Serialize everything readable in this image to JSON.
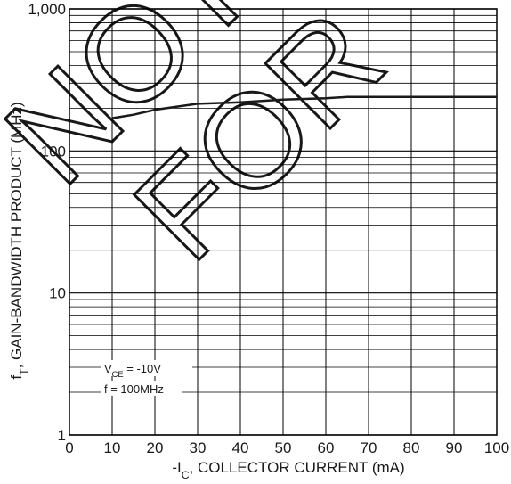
{
  "chart_data": {
    "type": "line",
    "xlabel": {
      "prefix": "-I",
      "sub": "C",
      "suffix": ", COLLECTOR CURRENT (mA)"
    },
    "ylabel": {
      "prefix": "f",
      "sub": "T",
      "suffix": ", GAIN-BANDWIDTH PRODUCT (MHz)"
    },
    "xlim": [
      0,
      100
    ],
    "ylim": [
      1,
      1000
    ],
    "yscale": "log",
    "grid": true,
    "x_ticks": [
      0,
      10,
      20,
      30,
      40,
      50,
      60,
      70,
      80,
      90,
      100
    ],
    "x_tick_labels": [
      "0",
      "10",
      "20",
      "30",
      "40",
      "50",
      "60",
      "70",
      "80",
      "90",
      "100"
    ],
    "y_ticks": [
      1,
      10,
      100,
      1000
    ],
    "y_tick_labels": [
      "1",
      "10",
      "100",
      "1,000"
    ],
    "annotations": [
      {
        "prefix": "V",
        "sub": "CE",
        "suffix": " = -10V"
      },
      {
        "text": "f = 100MHz"
      }
    ],
    "series": [
      {
        "x": [
          10,
          15,
          20,
          25,
          30,
          40,
          50,
          60,
          65,
          70,
          80,
          90,
          100
        ],
        "values": [
          170,
          180,
          195,
          205,
          215,
          220,
          230,
          235,
          240,
          240,
          240,
          240,
          240
        ]
      }
    ]
  },
  "watermark": {
    "line1": "NOT",
    "line2": "FOR"
  },
  "colors": {
    "line": "#1a1a1a",
    "grid": "#000000",
    "watermark": "#000000"
  }
}
